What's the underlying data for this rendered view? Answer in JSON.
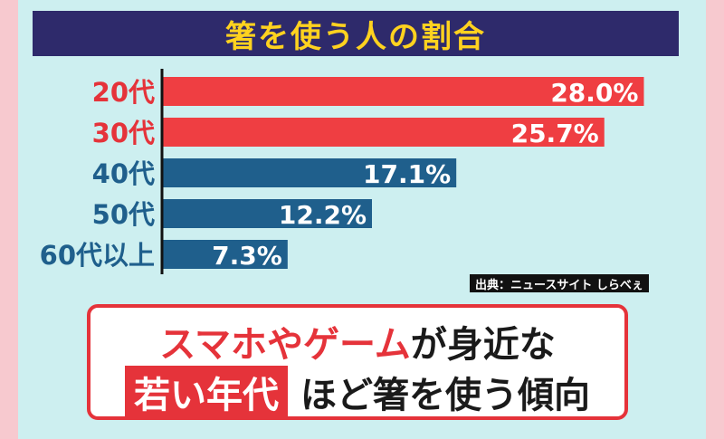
{
  "title": "箸を使う人の割合",
  "source": "出典：ニュースサイト しらべぇ",
  "callout": {
    "line1_red": "スマホやゲーム",
    "line1_dark": "が身近な",
    "line2_highlight": "若い年代",
    "line2_dark": "ほど箸を使う傾向"
  },
  "colors": {
    "red_bar": "#ef3e42",
    "blue_bar": "#1f5f8c",
    "red_label": "#e5333a",
    "blue_label": "#1f5f8c",
    "title_bg": "#2e2a6b",
    "title_text": "#ffd21f"
  },
  "chart_data": {
    "type": "bar",
    "orientation": "horizontal",
    "title": "箸を使う人の割合",
    "categories": [
      "20代",
      "30代",
      "40代",
      "50代",
      "60代以上"
    ],
    "values": [
      28.0,
      25.7,
      17.1,
      12.2,
      7.3
    ],
    "labels": [
      "28.0%",
      "25.7%",
      "17.1%",
      "12.2%",
      "7.3%"
    ],
    "bar_colors": [
      "red",
      "red",
      "blue",
      "blue",
      "blue"
    ],
    "xlim": [
      0,
      29.5
    ],
    "grid": false,
    "legend": "none"
  }
}
